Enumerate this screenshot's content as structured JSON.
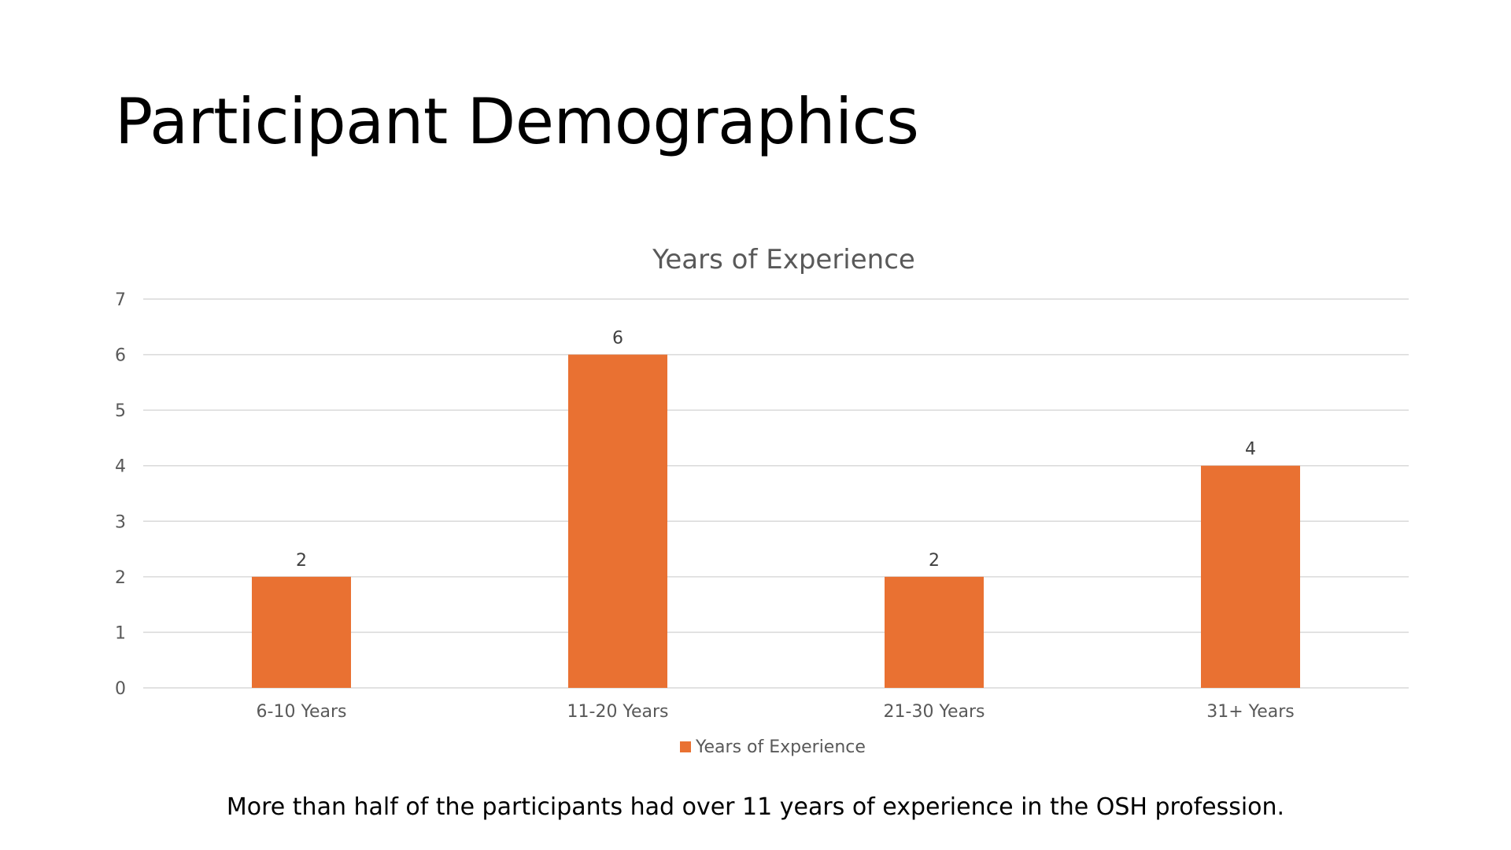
{
  "slide": {
    "title": "Participant Demographics",
    "caption": "More than half of the participants had over 11 years of experience in the OSH profession."
  },
  "colors": {
    "bar": "#E97132",
    "grid": "#D9D9D9",
    "axis_text": "#595959",
    "title_text": "#595959",
    "label_text": "#404040"
  },
  "chart_data": {
    "type": "bar",
    "title": "Years of Experience",
    "categories": [
      "6-10 Years",
      "11-20 Years",
      "21-30 Years",
      "31+ Years"
    ],
    "series": [
      {
        "name": "Years of Experience",
        "values": [
          2,
          6,
          2,
          4
        ]
      }
    ],
    "data_labels": [
      "2",
      "6",
      "2",
      "4"
    ],
    "y_ticks": [
      "0",
      "1",
      "2",
      "3",
      "4",
      "5",
      "6",
      "7"
    ],
    "ylim": [
      0,
      7
    ],
    "grid": true,
    "legend_position": "bottom",
    "xlabel": "",
    "ylabel": ""
  }
}
